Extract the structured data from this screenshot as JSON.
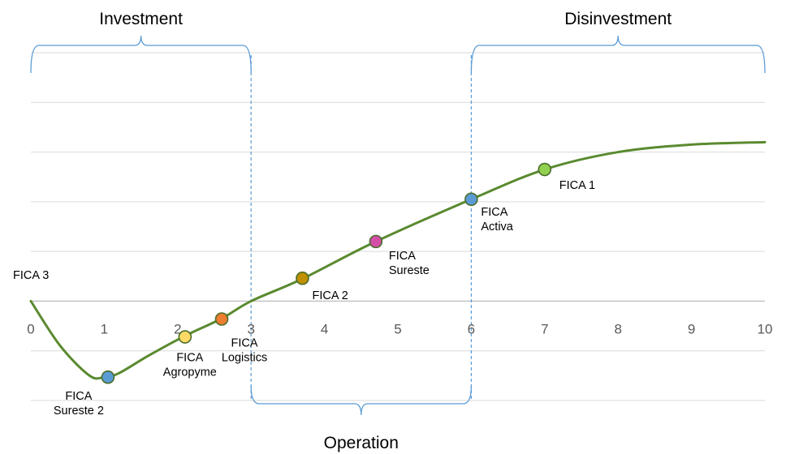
{
  "chart_data": {
    "type": "line",
    "title": "",
    "xlabel": "",
    "ylabel": "",
    "xlim": [
      0,
      10
    ],
    "ylim": [
      -2,
      5
    ],
    "x_ticks": [
      0,
      1,
      2,
      3,
      4,
      5,
      6,
      7,
      8,
      9,
      10
    ],
    "tick_labels": [
      "0",
      "1",
      "2",
      "3",
      "4",
      "5",
      "6",
      "7",
      "8",
      "9",
      "10"
    ],
    "y_gridlines": [
      -2,
      -1,
      0,
      1,
      2,
      3,
      4,
      5
    ],
    "grid": true,
    "line_color": "#5a8a2f",
    "curve": {
      "x": [
        0,
        0.4,
        0.8,
        1.0,
        1.2,
        1.6,
        2.1,
        2.6,
        3.0,
        3.7,
        4.7,
        6.0,
        7.0,
        8.0,
        9.0,
        10.0
      ],
      "y": [
        0,
        -0.9,
        -1.5,
        -1.53,
        -1.45,
        -1.1,
        -0.7,
        -0.35,
        0.0,
        0.45,
        1.2,
        2.05,
        2.65,
        3.0,
        3.15,
        3.2
      ]
    },
    "points": [
      {
        "label_lines": [
          "FICA 3"
        ],
        "x": 0.0,
        "y": 0.0,
        "color": null
      },
      {
        "label_lines": [
          "FICA",
          "Sureste 2"
        ],
        "x": 1.05,
        "y": -1.53,
        "color": "#5b9bd5"
      },
      {
        "label_lines": [
          "FICA",
          "Agropyme"
        ],
        "x": 2.1,
        "y": -0.72,
        "color": "#ffd966"
      },
      {
        "label_lines": [
          "FICA",
          "Logistics"
        ],
        "x": 2.6,
        "y": -0.36,
        "color": "#ed7d31"
      },
      {
        "label_lines": [
          "FICA 2"
        ],
        "x": 3.7,
        "y": 0.46,
        "color": "#bf9000"
      },
      {
        "label_lines": [
          "FICA",
          "Sureste"
        ],
        "x": 4.7,
        "y": 1.2,
        "color": "#d44ea8"
      },
      {
        "label_lines": [
          "FICA",
          "Activa"
        ],
        "x": 6.0,
        "y": 2.05,
        "color": "#5b9bd5"
      },
      {
        "label_lines": [
          "FICA 1"
        ],
        "x": 7.0,
        "y": 2.65,
        "color": "#92d050"
      }
    ],
    "phases": [
      {
        "label": "Investment",
        "from_x": 0,
        "to_x": 3,
        "position": "top"
      },
      {
        "label": "Operation",
        "from_x": 3,
        "to_x": 6,
        "position": "bottom"
      },
      {
        "label": "Disinvestment",
        "from_x": 6,
        "to_x": 10,
        "position": "top"
      }
    ],
    "divider_x": [
      3,
      6
    ],
    "bracket_color": "#5b9bd5"
  }
}
